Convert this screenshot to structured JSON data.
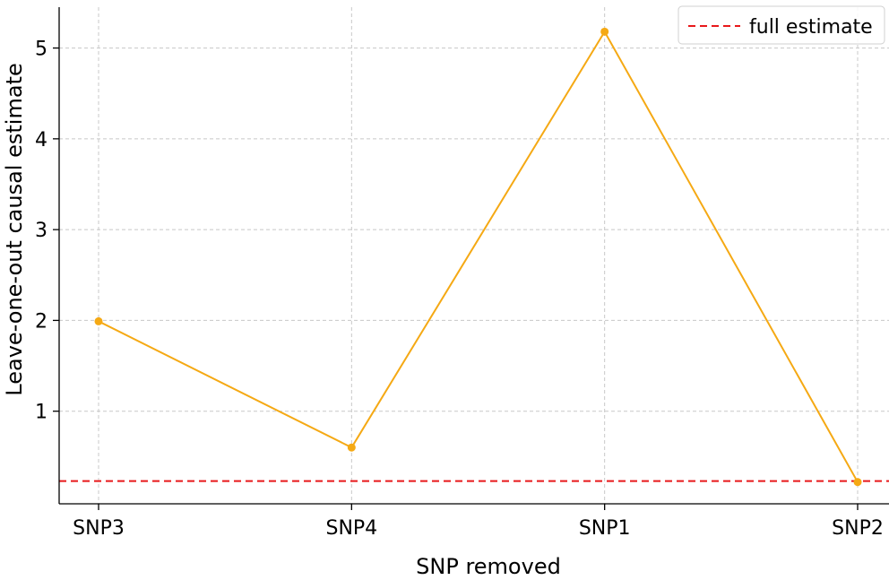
{
  "chart_data": {
    "type": "line",
    "categories": [
      "SNP3",
      "SNP4",
      "SNP1",
      "SNP2"
    ],
    "series": [
      {
        "values": [
          1.99,
          0.6,
          5.18,
          0.22
        ],
        "color": "#f5a914"
      }
    ],
    "reference_line": {
      "name": "full estimate",
      "value": 0.23,
      "color": "#e8191b",
      "style": "dashed"
    },
    "xlabel": "SNP removed",
    "ylabel": "Leave-one-out causal estimate",
    "yticks": [
      1,
      2,
      3,
      4,
      5
    ],
    "ylim": [
      -0.02,
      5.45
    ],
    "grid": true,
    "legend_position": "top-right"
  }
}
